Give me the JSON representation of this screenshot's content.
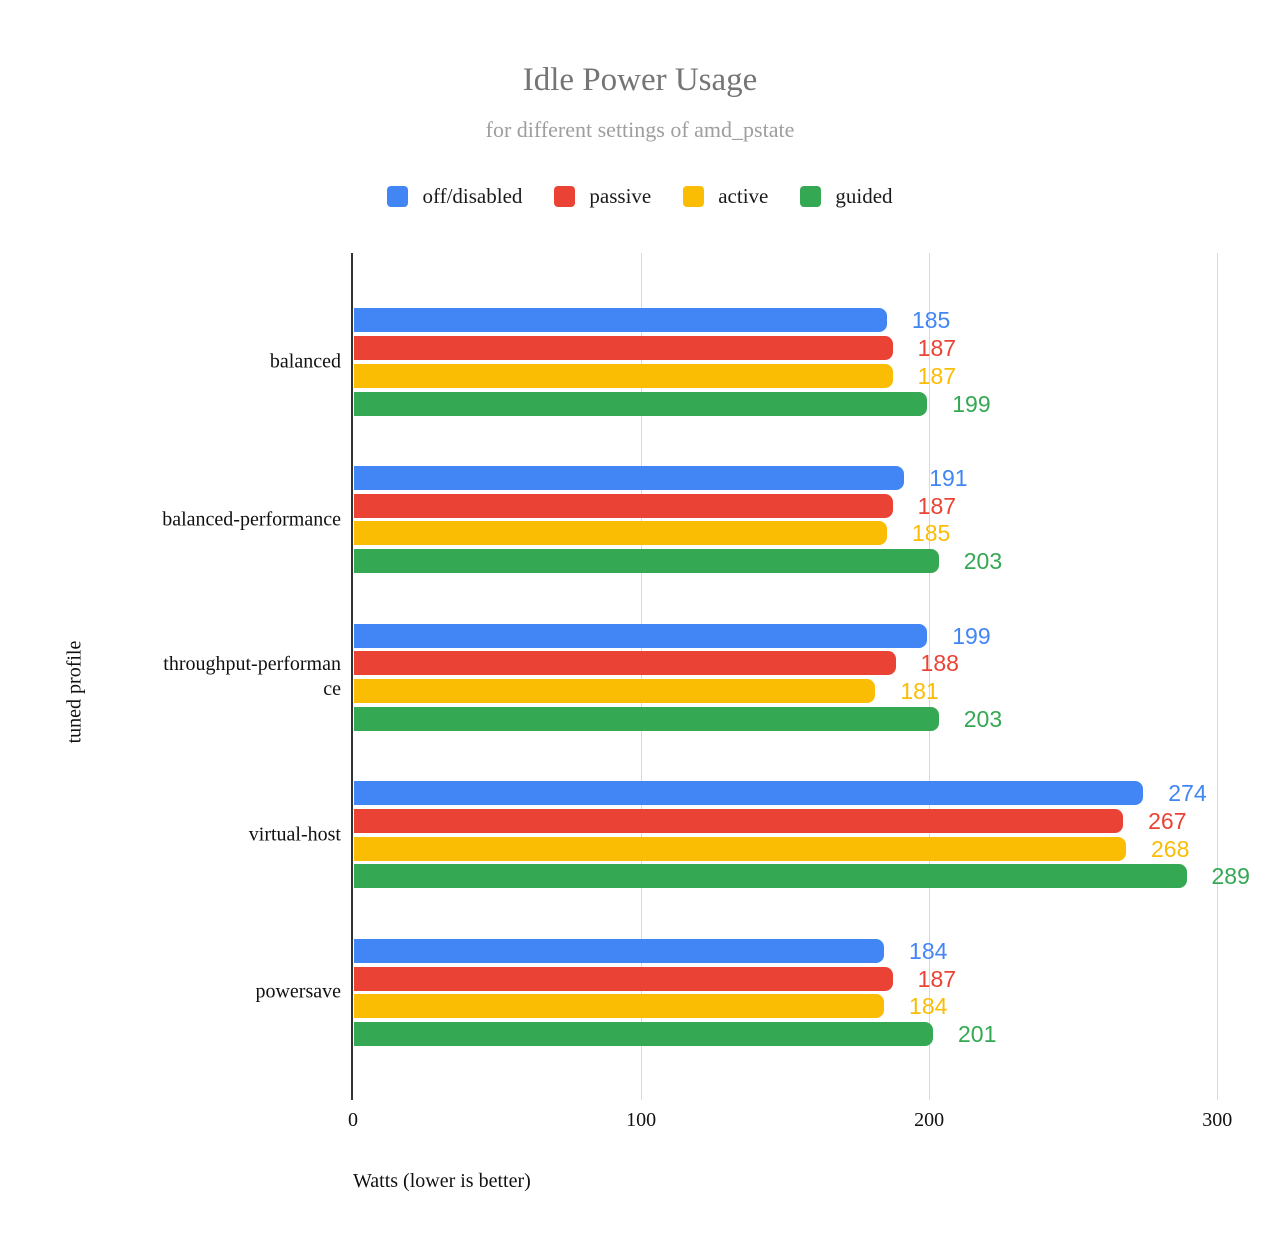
{
  "chart_data": {
    "type": "bar",
    "orientation": "horizontal",
    "title": "Idle Power Usage",
    "subtitle": "for different settings of amd_pstate",
    "xlabel": "Watts (lower is better)",
    "ylabel": "tuned profile",
    "categories": [
      "balanced",
      "balanced-performance",
      "throughput-performance",
      "virtual-host",
      "powersave"
    ],
    "category_display": [
      "balanced",
      "balanced-performance",
      "throughput-performan\nce",
      "virtual-host",
      "powersave"
    ],
    "series": [
      {
        "name": "off/disabled",
        "color": "#4285F4",
        "values": [
          185,
          191,
          199,
          274,
          184
        ]
      },
      {
        "name": "passive",
        "color": "#EA4335",
        "values": [
          187,
          187,
          188,
          267,
          187
        ]
      },
      {
        "name": "active",
        "color": "#FBBC04",
        "values": [
          187,
          185,
          181,
          268,
          184
        ]
      },
      {
        "name": "guided",
        "color": "#34A853",
        "values": [
          199,
          203,
          203,
          289,
          201
        ]
      }
    ],
    "xticks": [
      0,
      100,
      200,
      300
    ],
    "xlim": [
      0,
      310
    ],
    "legend_position": "top",
    "grid": "vertical-lines",
    "value_labels": "at-bar-end-colored-like-series",
    "colors": {
      "axis_line": "#333333",
      "gridline": "#d9d9d9",
      "title_text": "#757575",
      "subtitle_text": "#9e9e9e",
      "label_text": "#111111"
    }
  }
}
